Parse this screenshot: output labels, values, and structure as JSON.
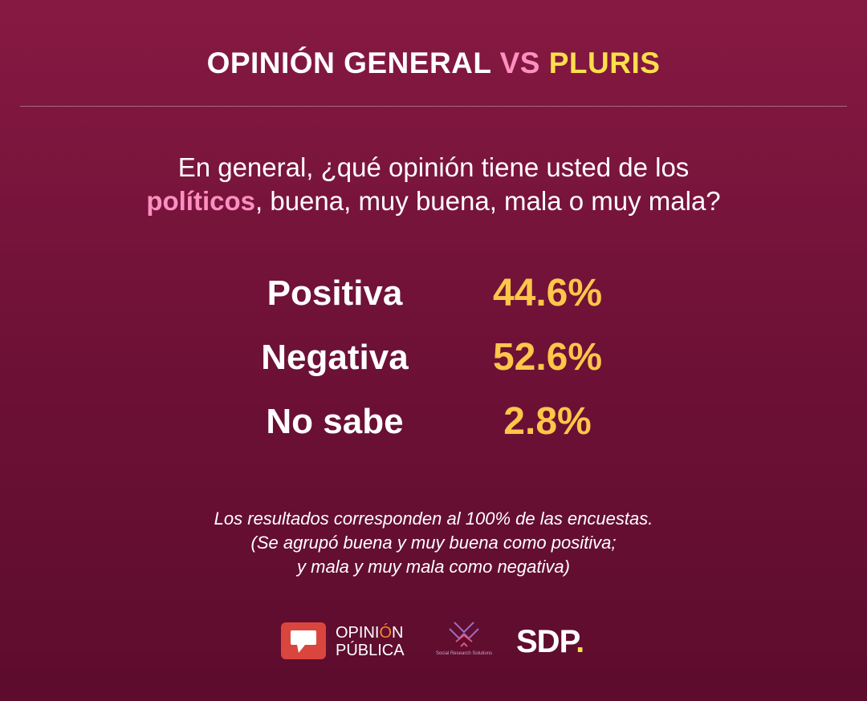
{
  "header": {
    "title_part1": "OPINIÓN GENERAL",
    "title_vs": "VS",
    "title_part2": "PLURIS"
  },
  "question": {
    "line1": "En general, ¿qué opinión tiene usted de los",
    "highlight": "políticos",
    "line2_rest": ", buena, muy buena, mala o muy mala?"
  },
  "chart_data": {
    "type": "table",
    "categories": [
      "Positiva",
      "Negativa",
      "No sabe"
    ],
    "values": [
      44.6,
      52.6,
      2.8
    ],
    "value_labels": [
      "44.6%",
      "52.6%",
      "2.8%"
    ]
  },
  "note": {
    "line1": "Los resultados corresponden al 100% de las encuestas.",
    "line2": "(Se agrupó buena y muy buena como positiva;",
    "line3": "y mala y muy mala como negativa)"
  },
  "logos": {
    "opinion_line1_a": "OPINI",
    "opinion_line1_b": "Ó",
    "opinion_line1_c": "N",
    "opinion_line2": "PÚBLICA",
    "srs_name": "Social Research Solutions",
    "sdp_text": "SDP",
    "sdp_dot": "."
  },
  "colors": {
    "background": "#7a1540",
    "accent_pink": "#ff8fc1",
    "accent_yellow": "#ffdf4a",
    "value_orange": "#ffc64a"
  }
}
